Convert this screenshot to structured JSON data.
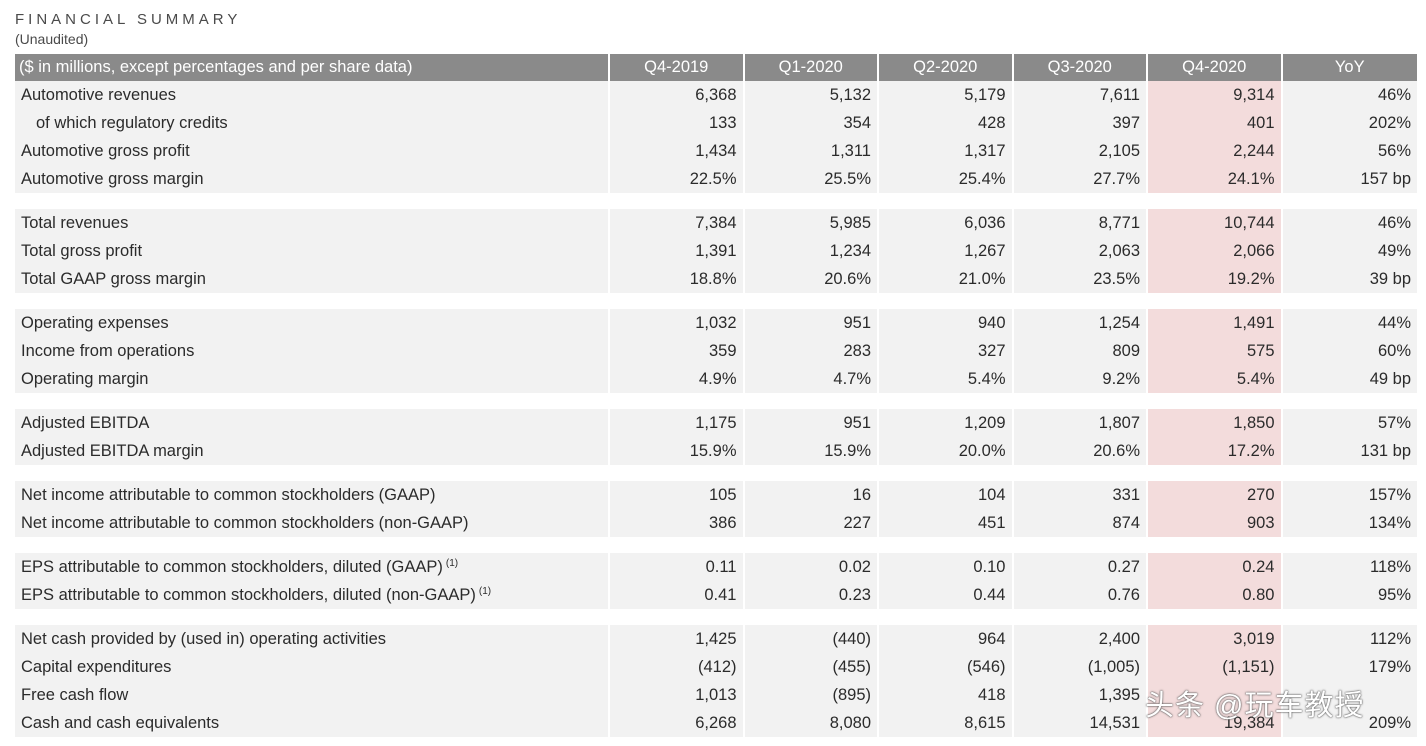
{
  "header": {
    "title": "FINANCIAL SUMMARY",
    "subtitle": "(Unaudited)"
  },
  "table": {
    "label_header": "($ in millions, except percentages and per share data)",
    "columns": [
      "Q4-2019",
      "Q1-2020",
      "Q2-2020",
      "Q3-2020",
      "Q4-2020",
      "YoY"
    ],
    "highlight_column": "Q4-2020",
    "highlight_color": "#f3dcdc",
    "header_bg_color": "#8a8a8a",
    "row_bg_color": "#f2f2f2",
    "groups": [
      {
        "rows": [
          {
            "label": "Automotive revenues",
            "indent": false,
            "values": [
              "6,368",
              "5,132",
              "5,179",
              "7,611",
              "9,314",
              "46%"
            ]
          },
          {
            "label": "of which regulatory credits",
            "indent": true,
            "values": [
              "133",
              "354",
              "428",
              "397",
              "401",
              "202%"
            ]
          },
          {
            "label": "Automotive gross profit",
            "indent": false,
            "values": [
              "1,434",
              "1,311",
              "1,317",
              "2,105",
              "2,244",
              "56%"
            ]
          },
          {
            "label": "Automotive gross margin",
            "indent": false,
            "values": [
              "22.5%",
              "25.5%",
              "25.4%",
              "27.7%",
              "24.1%",
              "157 bp"
            ]
          }
        ]
      },
      {
        "rows": [
          {
            "label": "Total revenues",
            "indent": false,
            "values": [
              "7,384",
              "5,985",
              "6,036",
              "8,771",
              "10,744",
              "46%"
            ]
          },
          {
            "label": "Total gross profit",
            "indent": false,
            "values": [
              "1,391",
              "1,234",
              "1,267",
              "2,063",
              "2,066",
              "49%"
            ]
          },
          {
            "label": "Total GAAP gross margin",
            "indent": false,
            "values": [
              "18.8%",
              "20.6%",
              "21.0%",
              "23.5%",
              "19.2%",
              "39 bp"
            ]
          }
        ]
      },
      {
        "rows": [
          {
            "label": "Operating expenses",
            "indent": false,
            "values": [
              "1,032",
              "951",
              "940",
              "1,254",
              "1,491",
              "44%"
            ]
          },
          {
            "label": "Income from operations",
            "indent": false,
            "values": [
              "359",
              "283",
              "327",
              "809",
              "575",
              "60%"
            ]
          },
          {
            "label": "Operating margin",
            "indent": false,
            "values": [
              "4.9%",
              "4.7%",
              "5.4%",
              "9.2%",
              "5.4%",
              "49 bp"
            ]
          }
        ]
      },
      {
        "rows": [
          {
            "label": "Adjusted EBITDA",
            "indent": false,
            "values": [
              "1,175",
              "951",
              "1,209",
              "1,807",
              "1,850",
              "57%"
            ]
          },
          {
            "label": "Adjusted EBITDA margin",
            "indent": false,
            "values": [
              "15.9%",
              "15.9%",
              "20.0%",
              "20.6%",
              "17.2%",
              "131 bp"
            ]
          }
        ]
      },
      {
        "rows": [
          {
            "label": "Net income attributable to common stockholders (GAAP)",
            "indent": false,
            "values": [
              "105",
              "16",
              "104",
              "331",
              "270",
              "157%"
            ]
          },
          {
            "label": "Net income attributable to common stockholders (non-GAAP)",
            "indent": false,
            "values": [
              "386",
              "227",
              "451",
              "874",
              "903",
              "134%"
            ]
          }
        ]
      },
      {
        "rows": [
          {
            "label": "EPS attributable to common stockholders, diluted (GAAP)",
            "footnote": "(1)",
            "indent": false,
            "values": [
              "0.11",
              "0.02",
              "0.10",
              "0.27",
              "0.24",
              "118%"
            ]
          },
          {
            "label": "EPS attributable to common stockholders, diluted (non-GAAP)",
            "footnote": "(1)",
            "indent": false,
            "values": [
              "0.41",
              "0.23",
              "0.44",
              "0.76",
              "0.80",
              "95%"
            ]
          }
        ]
      },
      {
        "rows": [
          {
            "label": "Net cash provided by (used in) operating activities",
            "indent": false,
            "values": [
              "1,425",
              "(440)",
              "964",
              "2,400",
              "3,019",
              "112%"
            ]
          },
          {
            "label": "Capital expenditures",
            "indent": false,
            "values": [
              "(412)",
              "(455)",
              "(546)",
              "(1,005)",
              "(1,151)",
              "179%"
            ]
          },
          {
            "label": "Free cash flow",
            "indent": false,
            "values": [
              "1,013",
              "(895)",
              "418",
              "1,395",
              "",
              ""
            ]
          },
          {
            "label": "Cash and cash equivalents",
            "indent": false,
            "values": [
              "6,268",
              "8,080",
              "8,615",
              "14,531",
              "19,384",
              "209%"
            ]
          }
        ]
      }
    ]
  },
  "watermark": {
    "text": "头条 @玩车教授"
  }
}
